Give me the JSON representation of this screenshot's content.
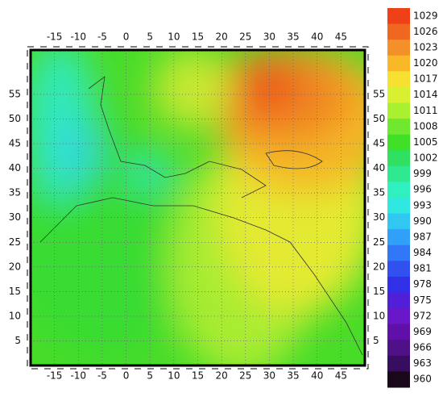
{
  "map": {
    "lonlim": [
      -20,
      50
    ],
    "latlim": [
      0,
      64
    ],
    "lonticks": [
      -15,
      -10,
      -5,
      0,
      5,
      10,
      15,
      20,
      25,
      30,
      35,
      40,
      45
    ],
    "latticks": [
      5,
      10,
      15,
      20,
      25,
      30,
      35,
      40,
      45,
      50,
      55
    ],
    "grid": true
  },
  "colorbar": {
    "levels": [
      1029,
      1026,
      1023,
      1020,
      1017,
      1014,
      1011,
      1008,
      1005,
      1002,
      999,
      996,
      993,
      990,
      987,
      984,
      981,
      978,
      975,
      972,
      969,
      966,
      963,
      960
    ],
    "colors": [
      "#f04018",
      "#f06820",
      "#f49028",
      "#f8b828",
      "#f8e030",
      "#d8f030",
      "#a8f030",
      "#70e830",
      "#40e028",
      "#30e060",
      "#30e890",
      "#30f0c0",
      "#30e8e0",
      "#30c8f0",
      "#30a0f8",
      "#3078f8",
      "#3050f0",
      "#3030e8",
      "#5020d8",
      "#6818c8",
      "#6010a8",
      "#501088",
      "#380c60",
      "#180818"
    ]
  }
}
